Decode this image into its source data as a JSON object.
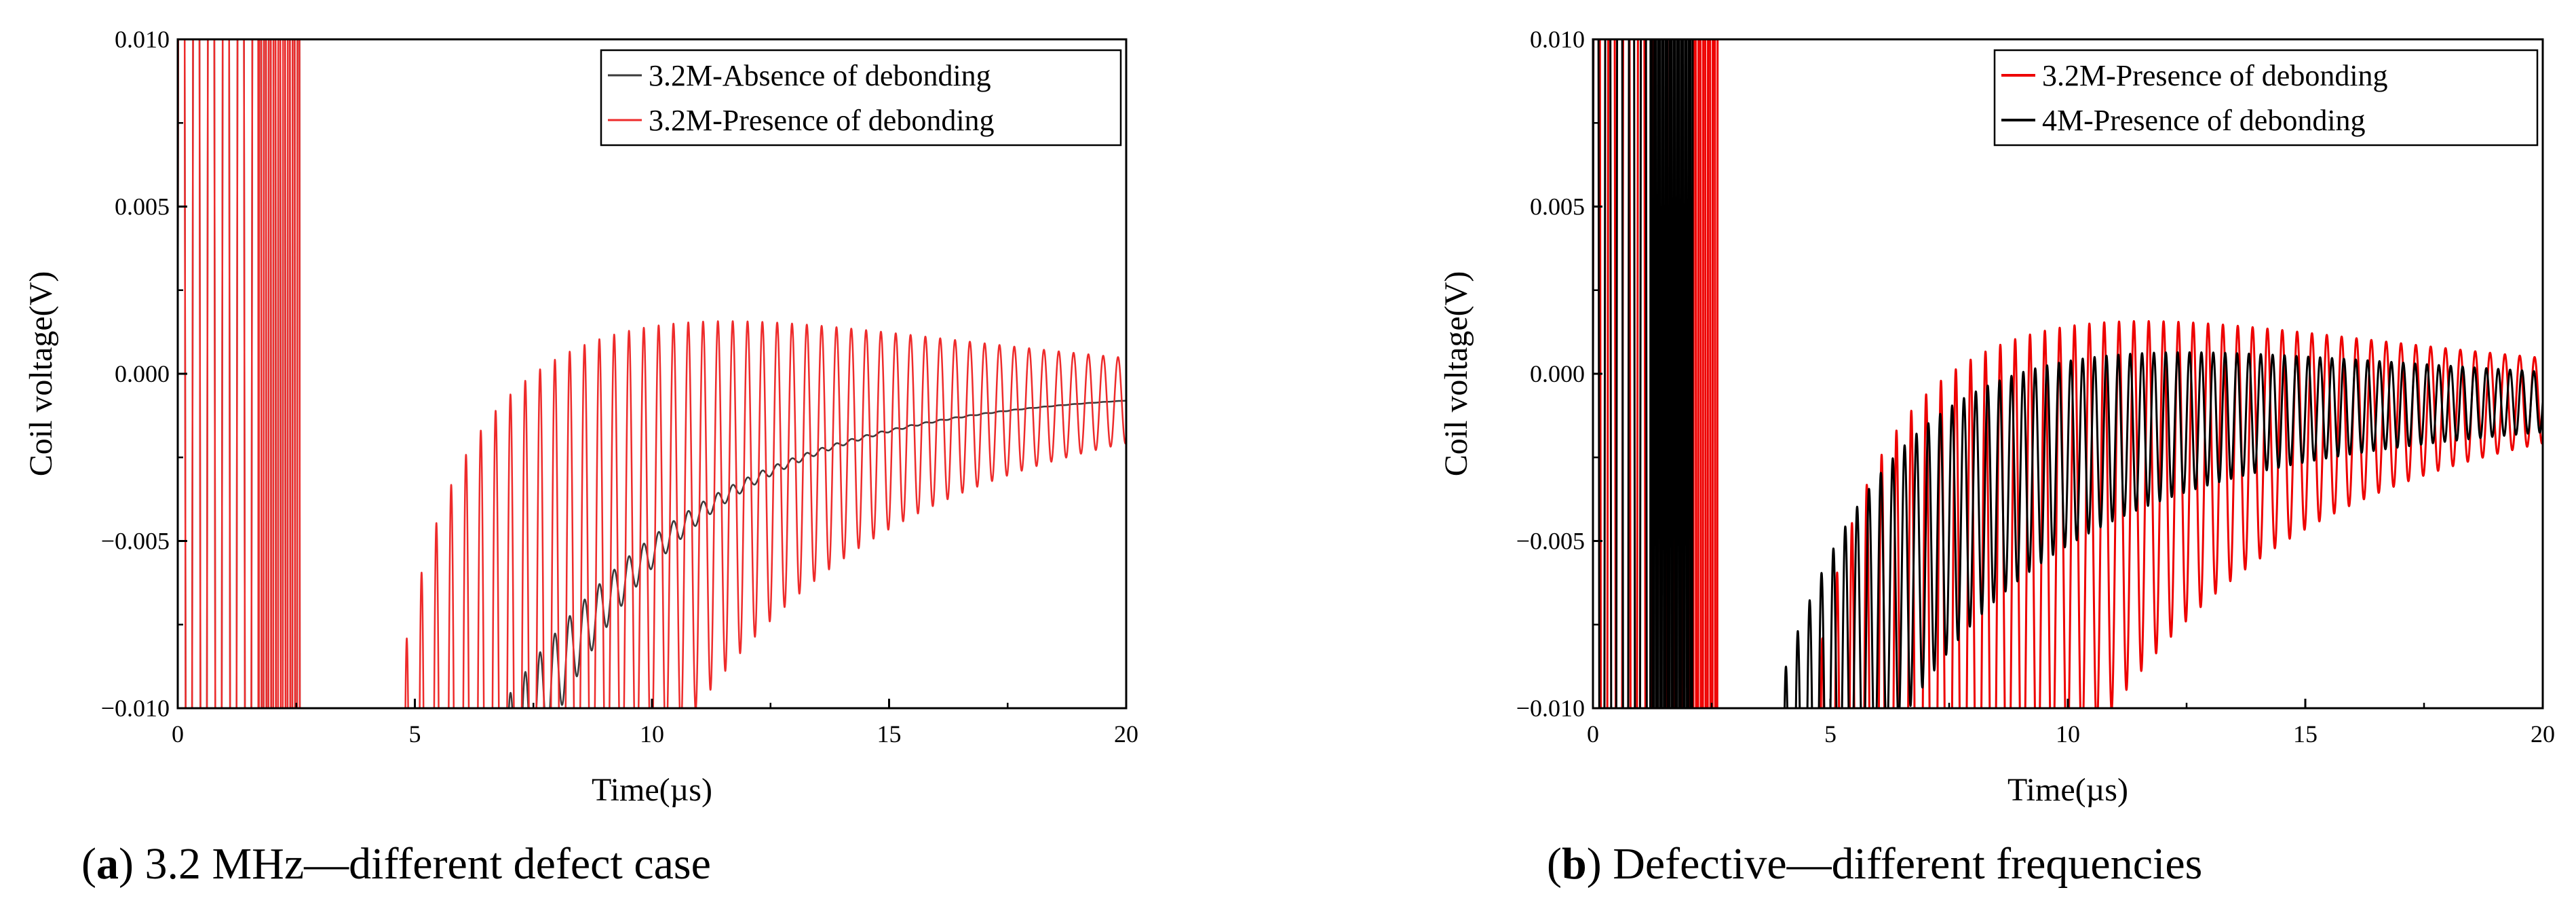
{
  "chart_data": [
    {
      "type": "line",
      "title": "",
      "xlabel": "Time(µs)",
      "ylabel": "Coil voltage(V)",
      "xlim": [
        0,
        20
      ],
      "ylim": [
        -0.01,
        0.01
      ],
      "xticks": [
        0,
        5,
        10,
        15,
        20
      ],
      "yticks": [
        -0.01,
        -0.005,
        0.0,
        0.005,
        0.01
      ],
      "xtick_labels": [
        "0",
        "5",
        "10",
        "15",
        "20"
      ],
      "ytick_labels": [
        "−0.010",
        "−0.005",
        "0.000",
        "0.005",
        "0.010"
      ],
      "legend_position": "top-right",
      "caption": {
        "label": "a",
        "text": " 3.2 MHz—different defect case"
      },
      "series": [
        {
          "name": "3.2M-Absence of debonding",
          "color": "#3a3a3a",
          "width": 2.5,
          "excitation": {
            "start": 0,
            "end": 2.6,
            "freq": 3.2,
            "dense_from": 1.7
          },
          "decay": {
            "start": 3.5,
            "freq": 3.2,
            "baseline": -0.0005,
            "base_start": -0.03,
            "tau": 3.6,
            "amp0": 0.012,
            "amp_tau": 2.0,
            "amp_rise": 0.3
          }
        },
        {
          "name": "3.2M-Presence of debonding",
          "color": "#ee2b2b",
          "width": 2.5,
          "excitation": {
            "start": 0,
            "end": 2.6,
            "freq": 3.2,
            "dense_from": 1.7
          },
          "decay": {
            "start": 3.5,
            "freq": 3.2,
            "baseline": -0.0005,
            "base_start": -0.03,
            "tau": 3.6,
            "amp0": 0.02,
            "amp_tau": 6.0,
            "amp_rise": 0.8
          }
        }
      ]
    },
    {
      "type": "line",
      "title": "",
      "xlabel": "Time(µs)",
      "ylabel": "Coil voltage(V)",
      "xlim": [
        0,
        20
      ],
      "ylim": [
        -0.01,
        0.01
      ],
      "xticks": [
        0,
        5,
        10,
        15,
        20
      ],
      "yticks": [
        -0.01,
        -0.005,
        0.0,
        0.005,
        0.01
      ],
      "xtick_labels": [
        "0",
        "5",
        "10",
        "15",
        "20"
      ],
      "ytick_labels": [
        "−0.010",
        "−0.005",
        "0.000",
        "0.005",
        "0.010"
      ],
      "legend_position": "top-right",
      "caption": {
        "label": "b",
        "text": " Defective—different frequencies"
      },
      "series": [
        {
          "name": "3.2M-Presence of debonding",
          "color": "#ee0000",
          "width": 3,
          "excitation": {
            "start": 0,
            "end": 2.65,
            "freq": 3.2,
            "dense_from": 2.1
          },
          "decay": {
            "start": 3.5,
            "freq": 3.2,
            "baseline": -0.0005,
            "base_start": -0.03,
            "tau": 3.6,
            "amp0": 0.02,
            "amp_tau": 6.0,
            "amp_rise": 0.8
          }
        },
        {
          "name": "4M-Presence of debonding",
          "color": "#000000",
          "width": 3,
          "excitation": {
            "start": 0,
            "end": 2.1,
            "freq": 4.0,
            "dense_from": 1.2
          },
          "decay": {
            "start": 3.0,
            "freq": 4.0,
            "baseline": -0.0008,
            "base_start": -0.02,
            "tau": 2.8,
            "amp0": 0.006,
            "amp_tau": 9.0,
            "amp_rise": 0.3
          }
        }
      ]
    }
  ]
}
